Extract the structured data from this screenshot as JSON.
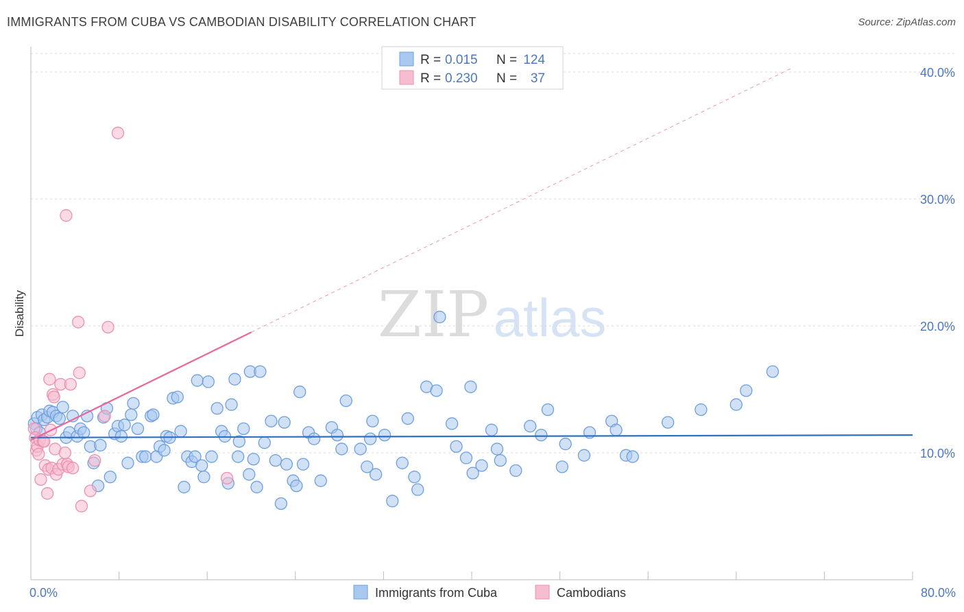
{
  "header": {
    "title": "IMMIGRANTS FROM CUBA VS CAMBODIAN DISABILITY CORRELATION CHART",
    "source": "Source: ZipAtlas.com"
  },
  "watermark": {
    "zip": "ZIP",
    "atlas": "atlas"
  },
  "colors": {
    "blue_fill": "#a9c8ef",
    "blue_stroke": "#6d9fe0",
    "blue_line": "#2f6fc4",
    "pink_fill": "#f6bccf",
    "pink_stroke": "#ee8fb0",
    "pink_line": "#e8679a",
    "tick_text": "#4a78c2",
    "grid": "#d8d8d8"
  },
  "legend": {
    "rows": [
      {
        "r_label": "R =",
        "r_value": "0.015",
        "n_label": "N =",
        "n_value": "124"
      },
      {
        "r_label": "R =",
        "r_value": "0.230",
        "n_label": "N =",
        "n_value": "37"
      }
    ]
  },
  "chart_data": {
    "type": "scatter",
    "xlabel": "",
    "ylabel": "Disability",
    "xlim": [
      0,
      80
    ],
    "ylim": [
      0,
      42
    ],
    "x_tick_labels": [
      "0.0%",
      "80.0%"
    ],
    "y_ticks": [
      10,
      20,
      30,
      40
    ],
    "y_tick_labels": [
      "10.0%",
      "20.0%",
      "30.0%",
      "40.0%"
    ],
    "grid": true,
    "legend_position": "top-center",
    "series": [
      {
        "name": "Immigrants from Cuba",
        "trend": {
          "x0": 0,
          "y0": 11.2,
          "x1": 80,
          "y1": 11.4,
          "dashed_to": null
        },
        "points": [
          [
            0.3,
            12.3
          ],
          [
            0.5,
            11.9
          ],
          [
            0.6,
            12.8
          ],
          [
            0.8,
            11.6
          ],
          [
            1.0,
            13.0
          ],
          [
            1.2,
            12.6
          ],
          [
            1.5,
            12.8
          ],
          [
            1.7,
            13.3
          ],
          [
            2.0,
            13.2
          ],
          [
            2.3,
            12.9
          ],
          [
            2.6,
            12.7
          ],
          [
            2.9,
            13.6
          ],
          [
            3.2,
            11.2
          ],
          [
            3.5,
            11.6
          ],
          [
            3.8,
            12.9
          ],
          [
            4.2,
            11.3
          ],
          [
            4.5,
            11.9
          ],
          [
            4.8,
            11.6
          ],
          [
            5.1,
            12.9
          ],
          [
            5.4,
            10.5
          ],
          [
            5.7,
            9.2
          ],
          [
            6.1,
            7.4
          ],
          [
            6.3,
            10.6
          ],
          [
            6.6,
            12.8
          ],
          [
            6.9,
            13.5
          ],
          [
            7.2,
            8.1
          ],
          [
            7.6,
            11.5
          ],
          [
            7.9,
            12.1
          ],
          [
            8.2,
            11.3
          ],
          [
            8.5,
            12.2
          ],
          [
            8.8,
            9.2
          ],
          [
            9.1,
            13.0
          ],
          [
            9.3,
            13.9
          ],
          [
            9.7,
            11.9
          ],
          [
            10.1,
            9.7
          ],
          [
            10.4,
            9.7
          ],
          [
            10.9,
            12.9
          ],
          [
            11.1,
            13.0
          ],
          [
            11.4,
            9.7
          ],
          [
            11.7,
            10.5
          ],
          [
            12.1,
            10.2
          ],
          [
            12.3,
            11.3
          ],
          [
            12.6,
            11.2
          ],
          [
            12.9,
            14.3
          ],
          [
            13.3,
            14.4
          ],
          [
            13.6,
            11.7
          ],
          [
            13.9,
            7.3
          ],
          [
            14.2,
            9.7
          ],
          [
            14.6,
            9.3
          ],
          [
            14.9,
            9.7
          ],
          [
            15.1,
            15.7
          ],
          [
            15.5,
            9.0
          ],
          [
            15.7,
            8.1
          ],
          [
            16.1,
            15.6
          ],
          [
            16.4,
            9.7
          ],
          [
            16.9,
            13.5
          ],
          [
            17.3,
            11.7
          ],
          [
            17.6,
            11.3
          ],
          [
            17.9,
            7.6
          ],
          [
            18.2,
            13.8
          ],
          [
            18.5,
            15.8
          ],
          [
            18.8,
            9.7
          ],
          [
            18.9,
            10.9
          ],
          [
            19.3,
            11.9
          ],
          [
            19.8,
            8.3
          ],
          [
            19.9,
            16.4
          ],
          [
            20.2,
            9.5
          ],
          [
            20.5,
            7.3
          ],
          [
            20.8,
            16.4
          ],
          [
            21.2,
            10.8
          ],
          [
            21.8,
            12.5
          ],
          [
            22.2,
            9.4
          ],
          [
            22.7,
            6.0
          ],
          [
            23.0,
            12.4
          ],
          [
            23.2,
            9.1
          ],
          [
            23.8,
            7.8
          ],
          [
            24.1,
            7.4
          ],
          [
            24.4,
            14.8
          ],
          [
            24.7,
            9.1
          ],
          [
            25.2,
            11.6
          ],
          [
            25.7,
            11.1
          ],
          [
            26.3,
            7.8
          ],
          [
            27.3,
            12.0
          ],
          [
            27.8,
            11.4
          ],
          [
            28.2,
            10.3
          ],
          [
            28.6,
            14.1
          ],
          [
            29.9,
            10.3
          ],
          [
            30.5,
            8.9
          ],
          [
            30.8,
            11.1
          ],
          [
            31.0,
            12.5
          ],
          [
            31.3,
            8.3
          ],
          [
            32.1,
            11.4
          ],
          [
            32.8,
            6.2
          ],
          [
            33.7,
            9.2
          ],
          [
            34.2,
            12.7
          ],
          [
            34.8,
            8.1
          ],
          [
            35.1,
            7.1
          ],
          [
            35.9,
            15.2
          ],
          [
            36.8,
            14.9
          ],
          [
            37.1,
            20.7
          ],
          [
            38.2,
            12.3
          ],
          [
            38.6,
            10.5
          ],
          [
            39.5,
            9.6
          ],
          [
            39.9,
            15.2
          ],
          [
            40.1,
            8.4
          ],
          [
            40.9,
            9.0
          ],
          [
            41.8,
            11.8
          ],
          [
            42.3,
            10.3
          ],
          [
            42.6,
            9.4
          ],
          [
            44.0,
            8.6
          ],
          [
            45.3,
            12.1
          ],
          [
            46.3,
            11.4
          ],
          [
            46.9,
            13.4
          ],
          [
            48.2,
            8.9
          ],
          [
            48.5,
            10.7
          ],
          [
            50.2,
            9.8
          ],
          [
            50.7,
            11.6
          ],
          [
            52.7,
            12.5
          ],
          [
            53.1,
            11.8
          ],
          [
            54.0,
            9.8
          ],
          [
            54.6,
            9.7
          ],
          [
            57.8,
            12.4
          ],
          [
            60.8,
            13.4
          ],
          [
            64.0,
            13.8
          ],
          [
            64.9,
            14.9
          ],
          [
            67.3,
            16.4
          ]
        ]
      },
      {
        "name": "Cambodians",
        "trend": {
          "x0": 0,
          "y0": 11.0,
          "x1": 20,
          "y1": 19.5,
          "dashed_to": {
            "x": 69,
            "y": 40.3
          }
        },
        "points": [
          [
            0.3,
            11.9
          ],
          [
            0.4,
            11.2
          ],
          [
            0.5,
            10.2
          ],
          [
            0.6,
            10.5
          ],
          [
            0.7,
            9.9
          ],
          [
            0.8,
            11.0
          ],
          [
            0.9,
            7.9
          ],
          [
            1.1,
            10.9
          ],
          [
            1.2,
            10.9
          ],
          [
            1.3,
            9.0
          ],
          [
            1.5,
            6.8
          ],
          [
            1.6,
            8.7
          ],
          [
            1.7,
            15.8
          ],
          [
            1.8,
            11.8
          ],
          [
            1.9,
            8.8
          ],
          [
            2.0,
            14.6
          ],
          [
            2.1,
            14.4
          ],
          [
            2.2,
            10.3
          ],
          [
            2.3,
            8.3
          ],
          [
            2.5,
            8.7
          ],
          [
            2.7,
            15.4
          ],
          [
            2.9,
            9.1
          ],
          [
            3.1,
            10.0
          ],
          [
            3.2,
            28.7
          ],
          [
            3.3,
            9.1
          ],
          [
            3.4,
            8.9
          ],
          [
            3.6,
            15.4
          ],
          [
            3.8,
            8.8
          ],
          [
            4.3,
            20.3
          ],
          [
            4.4,
            16.3
          ],
          [
            4.6,
            5.8
          ],
          [
            5.4,
            7.0
          ],
          [
            5.8,
            9.4
          ],
          [
            6.7,
            12.9
          ],
          [
            7.0,
            19.9
          ],
          [
            7.9,
            35.2
          ],
          [
            17.8,
            8.0
          ]
        ]
      }
    ]
  },
  "bottom_legend": {
    "items": [
      {
        "label": "Immigrants from Cuba"
      },
      {
        "label": "Cambodians"
      }
    ]
  }
}
